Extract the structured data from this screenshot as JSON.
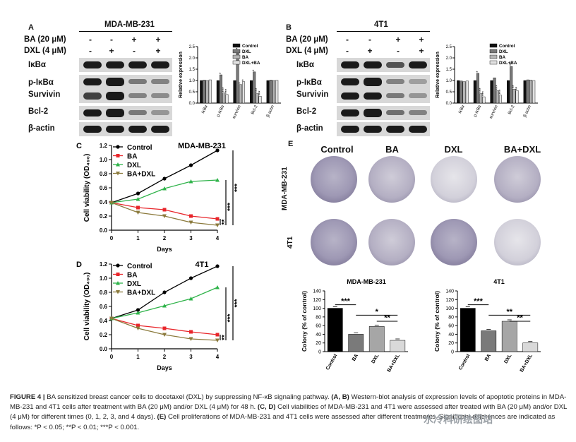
{
  "panelA": {
    "letter": "A",
    "cell_line": "MDA-MB-231",
    "treat_rows": [
      {
        "label": "BA  (20 μM)",
        "signs": [
          "-",
          "-",
          "+",
          "+"
        ]
      },
      {
        "label": "DXL  (4 μM)",
        "signs": [
          "-",
          "+",
          "-",
          "+"
        ]
      }
    ],
    "proteins": [
      "IκBα",
      "p-IκBα",
      "Survivin",
      "Bcl-2",
      "β-actin"
    ]
  },
  "panelB": {
    "letter": "B",
    "cell_line": "4T1",
    "treat_rows": [
      {
        "label": "BA  (20 μM)",
        "signs": [
          "-",
          "-",
          "+",
          "+"
        ]
      },
      {
        "label": "DXL  (4 μM)",
        "signs": [
          "-",
          "+",
          "-",
          "+"
        ]
      }
    ],
    "proteins": [
      "IκBα",
      "p-IκBα",
      "Survivin",
      "Bcl-2",
      "β-actin"
    ]
  },
  "panelE": {
    "letter": "E",
    "columns": [
      "Control",
      "BA",
      "DXL",
      "BA+DXL"
    ],
    "rows": [
      "MDA-MB-231",
      "4T1"
    ]
  },
  "caption": {
    "fig": "FIGURE 4 |",
    "text1": " BA sensitized breast cancer cells to docetaxel (DXL) by suppressing NF-κB signaling pathway. ",
    "ab": "(A, B)",
    "text2": " Western-blot analysis of expression levels of apoptotic proteins in MDA-MB-231 and 4T1 cells after treatment with BA (20 μM) and/or DXL (4 μM) for 48 h. ",
    "cd": "(C, D)",
    "text3": " Cell viabilities of MDA-MB-231 and 4T1 were assessed after treated with BA (20 μM) and/or DXL (4 μM) for different times (0, 1, 2, 3, and 4 days). ",
    "e": "(E)",
    "text4": " Cell proliferations of MDA-MB-231 and 4T1 cells were assessed after different treatments. Significant differences are indicated as follows: *P < 0.05; **P < 0.01; ***P < 0.001."
  },
  "watermark": "水冷科研绘图站",
  "chart_data": [
    {
      "id": "A-bar",
      "type": "bar",
      "ylabel": "Relative expression",
      "ylim": [
        0,
        2.5
      ],
      "yticks": [
        "0.0",
        "0.5",
        "1.0",
        "1.5",
        "2.0",
        "2.5"
      ],
      "categories": [
        "IκBα",
        "p-IκBα",
        "survivin",
        "Bcl-2",
        "β-actin"
      ],
      "legend": [
        "Control",
        "DXL",
        "BA",
        "DXL+BA"
      ],
      "series": [
        {
          "name": "Control",
          "color": "#111111",
          "values": [
            1.0,
            1.0,
            1.0,
            1.0,
            1.0
          ]
        },
        {
          "name": "DXL",
          "color": "#7a7a7a",
          "values": [
            1.02,
            1.25,
            2.2,
            1.38,
            1.02
          ]
        },
        {
          "name": "BA",
          "color": "#b5b5b5",
          "values": [
            1.0,
            0.45,
            0.82,
            0.42,
            1.0
          ]
        },
        {
          "name": "DXL+BA",
          "color": "#e2e2e2",
          "values": [
            1.03,
            0.38,
            0.95,
            0.3,
            1.01
          ]
        }
      ],
      "stars": [
        {
          "cat": 1,
          "series": 1,
          "text": "*"
        },
        {
          "cat": 1,
          "series": 2,
          "text": "***"
        },
        {
          "cat": 1,
          "series": 3,
          "text": "***"
        },
        {
          "cat": 2,
          "series": 1,
          "text": "***"
        },
        {
          "cat": 2,
          "series": 2,
          "text": "*"
        },
        {
          "cat": 2,
          "series": 3,
          "text": "*"
        },
        {
          "cat": 3,
          "series": 1,
          "text": "*"
        },
        {
          "cat": 3,
          "series": 2,
          "text": "***"
        },
        {
          "cat": 3,
          "series": 3,
          "text": "***"
        }
      ]
    },
    {
      "id": "B-bar",
      "type": "bar",
      "ylabel": "Relative expression",
      "ylim": [
        0,
        2.5
      ],
      "yticks": [
        "0.0",
        "0.5",
        "1.0",
        "1.5",
        "2.0",
        "2.5"
      ],
      "categories": [
        "IκBα",
        "p-IκBα",
        "survivin",
        "Bcl-2",
        "β-actin"
      ],
      "legend": [
        "Control",
        "DXL",
        "BA",
        "DXL+BA"
      ],
      "series": [
        {
          "name": "Control",
          "color": "#111111",
          "values": [
            1.0,
            1.0,
            1.0,
            1.0,
            1.0
          ]
        },
        {
          "name": "DXL",
          "color": "#7a7a7a",
          "values": [
            0.98,
            1.32,
            1.12,
            1.62,
            1.03
          ]
        },
        {
          "name": "BA",
          "color": "#b5b5b5",
          "values": [
            0.95,
            0.42,
            0.55,
            0.62,
            1.02
          ]
        },
        {
          "name": "DXL+BA",
          "color": "#e2e2e2",
          "values": [
            0.98,
            0.28,
            0.35,
            0.55,
            1.0
          ]
        }
      ],
      "stars": [
        {
          "cat": 1,
          "series": 1,
          "text": "*"
        },
        {
          "cat": 1,
          "series": 2,
          "text": "***"
        },
        {
          "cat": 1,
          "series": 3,
          "text": "***"
        },
        {
          "cat": 2,
          "series": 2,
          "text": "***"
        },
        {
          "cat": 2,
          "series": 3,
          "text": "***"
        },
        {
          "cat": 3,
          "series": 1,
          "text": "**"
        },
        {
          "cat": 3,
          "series": 2,
          "text": "**"
        },
        {
          "cat": 3,
          "series": 3,
          "text": "**"
        }
      ]
    },
    {
      "id": "C-line",
      "type": "line",
      "panel": "C",
      "title": "MDA-MB-231",
      "xlabel": "Days",
      "ylabel": "Cell viability (OD₄₉₀)",
      "x": [
        0,
        1,
        2,
        3,
        4
      ],
      "xlim": [
        0,
        4
      ],
      "ylim": [
        0,
        1.2
      ],
      "yticks": [
        "0.0",
        "0.2",
        "0.4",
        "0.6",
        "0.8",
        "1.0",
        "1.2"
      ],
      "series": [
        {
          "name": "Control",
          "color": "#000000",
          "marker": "circle",
          "values": [
            0.39,
            0.52,
            0.73,
            0.92,
            1.13
          ]
        },
        {
          "name": "BA",
          "color": "#e8262b",
          "marker": "square",
          "values": [
            0.39,
            0.32,
            0.29,
            0.2,
            0.16
          ]
        },
        {
          "name": "DXL",
          "color": "#2fb34a",
          "marker": "triangle",
          "values": [
            0.39,
            0.44,
            0.59,
            0.69,
            0.71
          ]
        },
        {
          "name": "BA+DXL",
          "color": "#8b7a3c",
          "marker": "triangle-down",
          "values": [
            0.39,
            0.25,
            0.2,
            0.11,
            0.07
          ]
        }
      ],
      "sig": [
        "***",
        "***",
        "**"
      ]
    },
    {
      "id": "D-line",
      "type": "line",
      "panel": "D",
      "title": "4T1",
      "xlabel": "Days",
      "ylabel": "Cell viability (OD₄₉₀)",
      "x": [
        0,
        1,
        2,
        3,
        4
      ],
      "xlim": [
        0,
        4
      ],
      "ylim": [
        0,
        1.2
      ],
      "yticks": [
        "0.0",
        "0.2",
        "0.4",
        "0.6",
        "0.8",
        "1.0",
        "1.2"
      ],
      "series": [
        {
          "name": "Control",
          "color": "#000000",
          "marker": "circle",
          "values": [
            0.43,
            0.55,
            0.8,
            1.0,
            1.17
          ]
        },
        {
          "name": "BA",
          "color": "#e8262b",
          "marker": "square",
          "values": [
            0.43,
            0.33,
            0.29,
            0.24,
            0.2
          ]
        },
        {
          "name": "DXL",
          "color": "#2fb34a",
          "marker": "triangle",
          "values": [
            0.43,
            0.51,
            0.61,
            0.71,
            0.87
          ]
        },
        {
          "name": "BA+DXL",
          "color": "#8b7a3c",
          "marker": "triangle-down",
          "values": [
            0.43,
            0.29,
            0.2,
            0.14,
            0.12
          ]
        }
      ],
      "sig": [
        "***",
        "***",
        "**"
      ]
    },
    {
      "id": "E1-bar",
      "type": "bar",
      "title": "MDA-MB-231",
      "ylabel": "Colony (% of control)",
      "ylim": [
        0,
        140
      ],
      "yticks": [
        "0",
        "20",
        "40",
        "60",
        "80",
        "100",
        "120",
        "140"
      ],
      "categories": [
        "Control",
        "BA",
        "DXL",
        "BA+DXL"
      ],
      "values": [
        100,
        40,
        58,
        26
      ],
      "colors": [
        "#000000",
        "#7a7a7a",
        "#a6a6a6",
        "#d9d9d9"
      ],
      "brackets": [
        {
          "from": 0,
          "to": 1,
          "text": "***"
        },
        {
          "from": 1,
          "to": 3,
          "text": "*"
        },
        {
          "from": 2,
          "to": 3,
          "text": "**"
        }
      ]
    },
    {
      "id": "E2-bar",
      "type": "bar",
      "title": "4T1",
      "ylabel": "Colony (% of control)",
      "ylim": [
        0,
        140
      ],
      "yticks": [
        "0",
        "20",
        "40",
        "60",
        "80",
        "100",
        "120",
        "140"
      ],
      "categories": [
        "Control",
        "BA",
        "DXL",
        "BA+DXL"
      ],
      "values": [
        100,
        48,
        70,
        20
      ],
      "colors": [
        "#000000",
        "#7a7a7a",
        "#a6a6a6",
        "#d9d9d9"
      ],
      "brackets": [
        {
          "from": 0,
          "to": 1,
          "text": "***"
        },
        {
          "from": 1,
          "to": 3,
          "text": "**"
        },
        {
          "from": 2,
          "to": 3,
          "text": "**"
        }
      ]
    }
  ]
}
